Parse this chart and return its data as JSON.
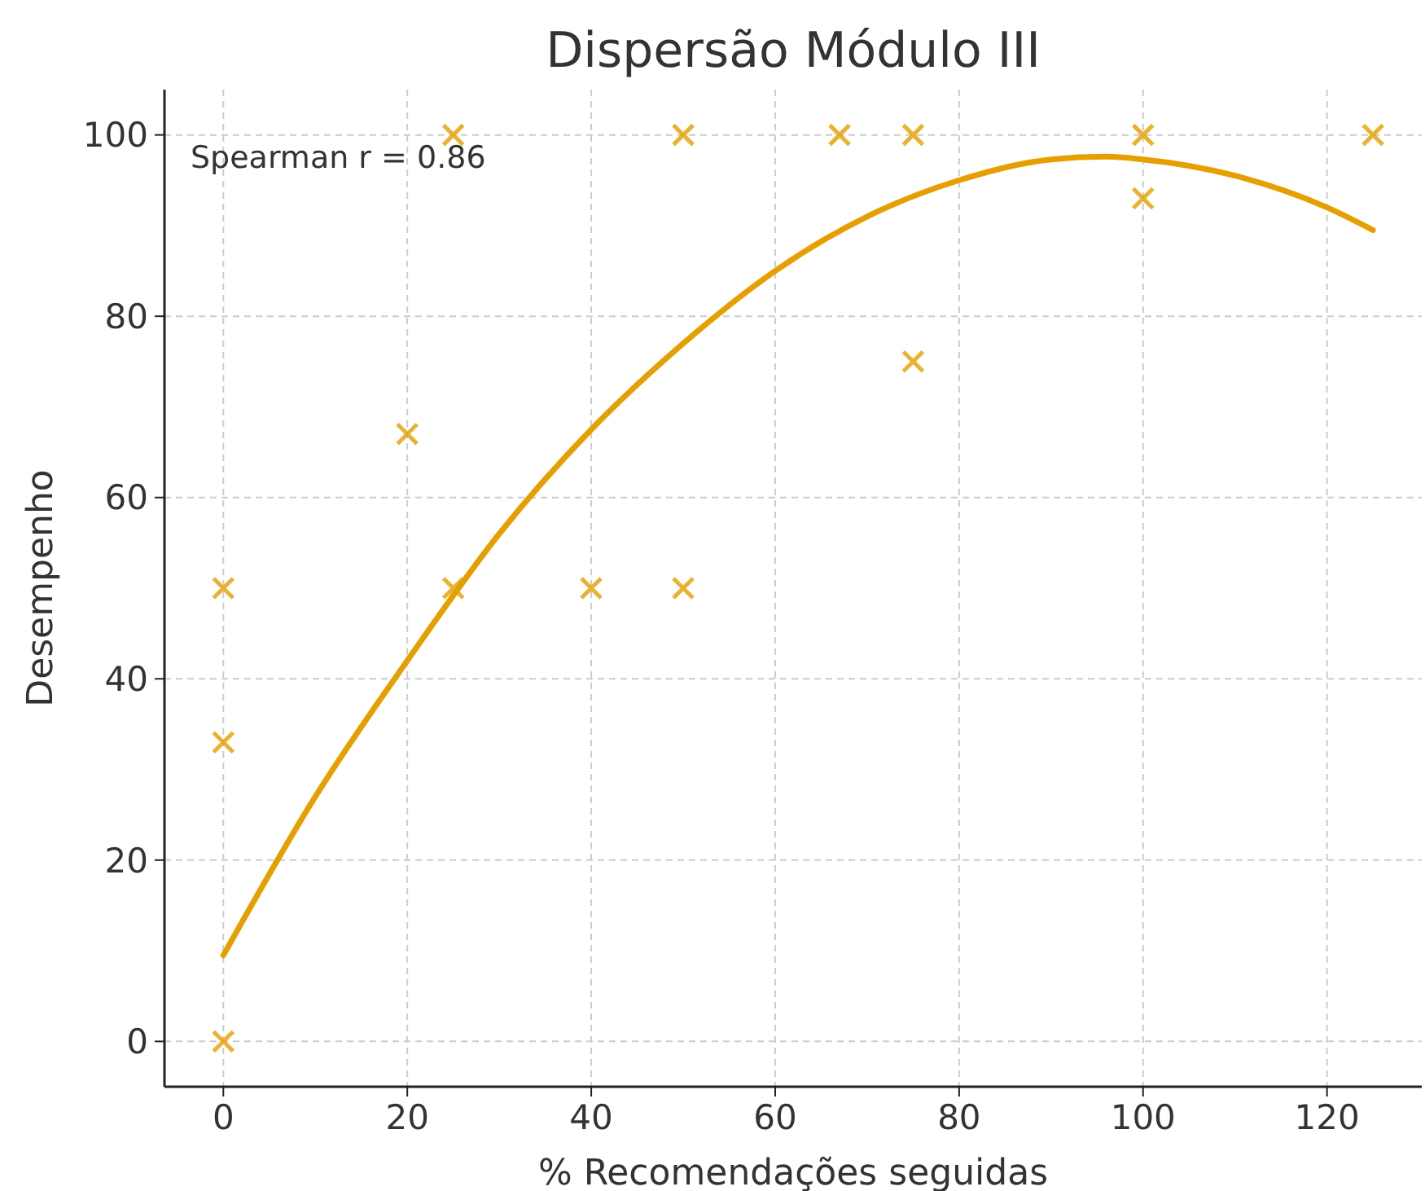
{
  "chart_data": {
    "type": "scatter",
    "title": "Dispersão Módulo III",
    "xlabel": "% Recomendações seguidas",
    "ylabel": "Desempenho",
    "xlim": [
      -6.4,
      130.3
    ],
    "ylim": [
      -5,
      105
    ],
    "xticks": [
      0,
      20,
      40,
      60,
      80,
      100,
      120
    ],
    "yticks": [
      0,
      20,
      40,
      60,
      80,
      100
    ],
    "grid": true,
    "annotations": [
      "Spearman r = 0.86"
    ],
    "series": [
      {
        "color": "#e69f00",
        "marker": "cross",
        "x": [
          0,
          0,
          0,
          20,
          25,
          25,
          40,
          50,
          50,
          67,
          75,
          75,
          100,
          100,
          125
        ],
        "values": [
          0,
          33,
          50,
          67,
          100,
          50,
          50,
          100,
          50,
          100,
          100,
          75,
          100,
          93,
          100
        ]
      },
      {
        "type": "line",
        "color": "#e69f00",
        "marker": "none",
        "line_style": "solid",
        "x": [
          0,
          10,
          20,
          30,
          40,
          50,
          60,
          70,
          80,
          90,
          96,
          100,
          110,
          120,
          125
        ],
        "values": [
          9.5,
          27,
          42,
          56,
          67.5,
          77,
          85,
          91,
          95,
          97.3,
          97.6,
          97.3,
          95.5,
          92,
          89.5
        ]
      }
    ]
  }
}
